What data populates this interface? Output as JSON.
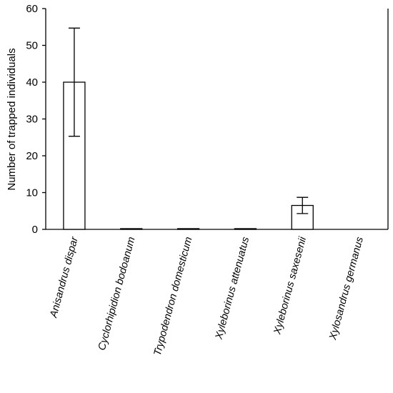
{
  "chart_data": {
    "type": "bar",
    "title": "",
    "xlabel": "",
    "ylabel": "Number of trapped individuals",
    "ylim": [
      0,
      60
    ],
    "yticks": [
      0,
      10,
      20,
      30,
      40,
      50,
      60
    ],
    "grid": false,
    "categories": [
      "Anisandrus dispar",
      "Cyclorhipidion bodoanum",
      "Trypodendron domesticum",
      "Xyleborinus attenuatus",
      "Xyleborinus saxesenii",
      "Xylosandrus germanus"
    ],
    "values": [
      40.0,
      0.2,
      0.2,
      0.2,
      6.5,
      0
    ],
    "error_lower": [
      25.3,
      0.2,
      0.2,
      0.2,
      4.3,
      0
    ],
    "error_upper": [
      54.7,
      0.2,
      0.2,
      0.2,
      8.7,
      0
    ],
    "colors": {
      "bar_fill": "#ffffff",
      "bar_stroke": "#000000",
      "axis": "#000000"
    }
  }
}
